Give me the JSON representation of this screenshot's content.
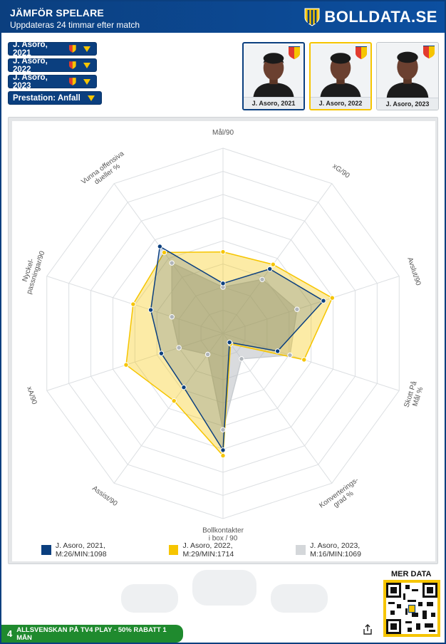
{
  "header": {
    "title": "JÄMFÖR SPELARE",
    "subtitle": "Uppdateras 24 timmar efter match",
    "brand": "BOLLDATA.SE"
  },
  "selectors": [
    {
      "label": "J. Asoro, 2021"
    },
    {
      "label": "J. Asoro, 2022"
    },
    {
      "label": "J. Asoro, 2023"
    },
    {
      "label": "Prestation: Anfall"
    }
  ],
  "cards": [
    {
      "caption": "J. Asoro, 2021"
    },
    {
      "caption": "J. Asoro, 2022"
    },
    {
      "caption": "J. Asoro, 2023"
    }
  ],
  "colors": {
    "navy": "#0b3f7f",
    "yellow": "#f6c500",
    "grey": "#c8ccd0"
  },
  "chart_data": {
    "type": "radar",
    "axes": [
      "Mål/90",
      "xG/90",
      "Avslut/90",
      "Skott På Mål %",
      "Konverterings-grad %",
      "Bollkontakter i box / 90",
      "Assist/90",
      "xA/90",
      "Nyckel-passningar/90",
      "Vunna offensiva dueller %"
    ],
    "axis_label_lines": [
      [
        "Mål/90"
      ],
      [
        "xG/90"
      ],
      [
        "Avslut/90"
      ],
      [
        "Skott På",
        "Mål %"
      ],
      [
        "Konverterings-",
        "grad %"
      ],
      [
        "Bollkontakter",
        "i box / 90"
      ],
      [
        "Assist/90"
      ],
      [
        "xA/90"
      ],
      [
        "Nyckel-",
        "passningar/90"
      ],
      [
        "Vunna offensiva",
        "dueller %"
      ]
    ],
    "range": [
      0,
      1
    ],
    "rings": 8,
    "series": [
      {
        "name": "J. Asoro, 2021, M:26/MIN:1098",
        "color": "#0b3f7f",
        "values": [
          0.27,
          0.43,
          0.57,
          0.31,
          0.06,
          0.63,
          0.36,
          0.35,
          0.41,
          0.58
        ]
      },
      {
        "name": "J. Asoro, 2022, M:29/MIN:1714",
        "color": "#f6c500",
        "values": [
          0.44,
          0.46,
          0.62,
          0.46,
          0.07,
          0.66,
          0.45,
          0.55,
          0.51,
          0.54
        ]
      },
      {
        "name": "J. Asoro, 2023, M:16/MIN:1069",
        "color": "#c8ccd0",
        "values": [
          0.25,
          0.36,
          0.42,
          0.38,
          0.17,
          0.52,
          0.14,
          0.25,
          0.29,
          0.47
        ]
      }
    ]
  },
  "legend": [
    {
      "label": "J. Asoro, 2021, M:26/MIN:1098",
      "color": "#0b3f7f"
    },
    {
      "label": "J. Asoro, 2022, M:29/MIN:1714",
      "color": "#f6c500"
    },
    {
      "label": "J. Asoro, 2023, M:16/MIN:1069",
      "color": "#c8ccd0"
    }
  ],
  "mer_data": "MER DATA",
  "promo": {
    "logo": "4",
    "text": "ALLSVENSKAN PÅ TV4 PLAY - 50% RABATT 1 MÅN"
  }
}
